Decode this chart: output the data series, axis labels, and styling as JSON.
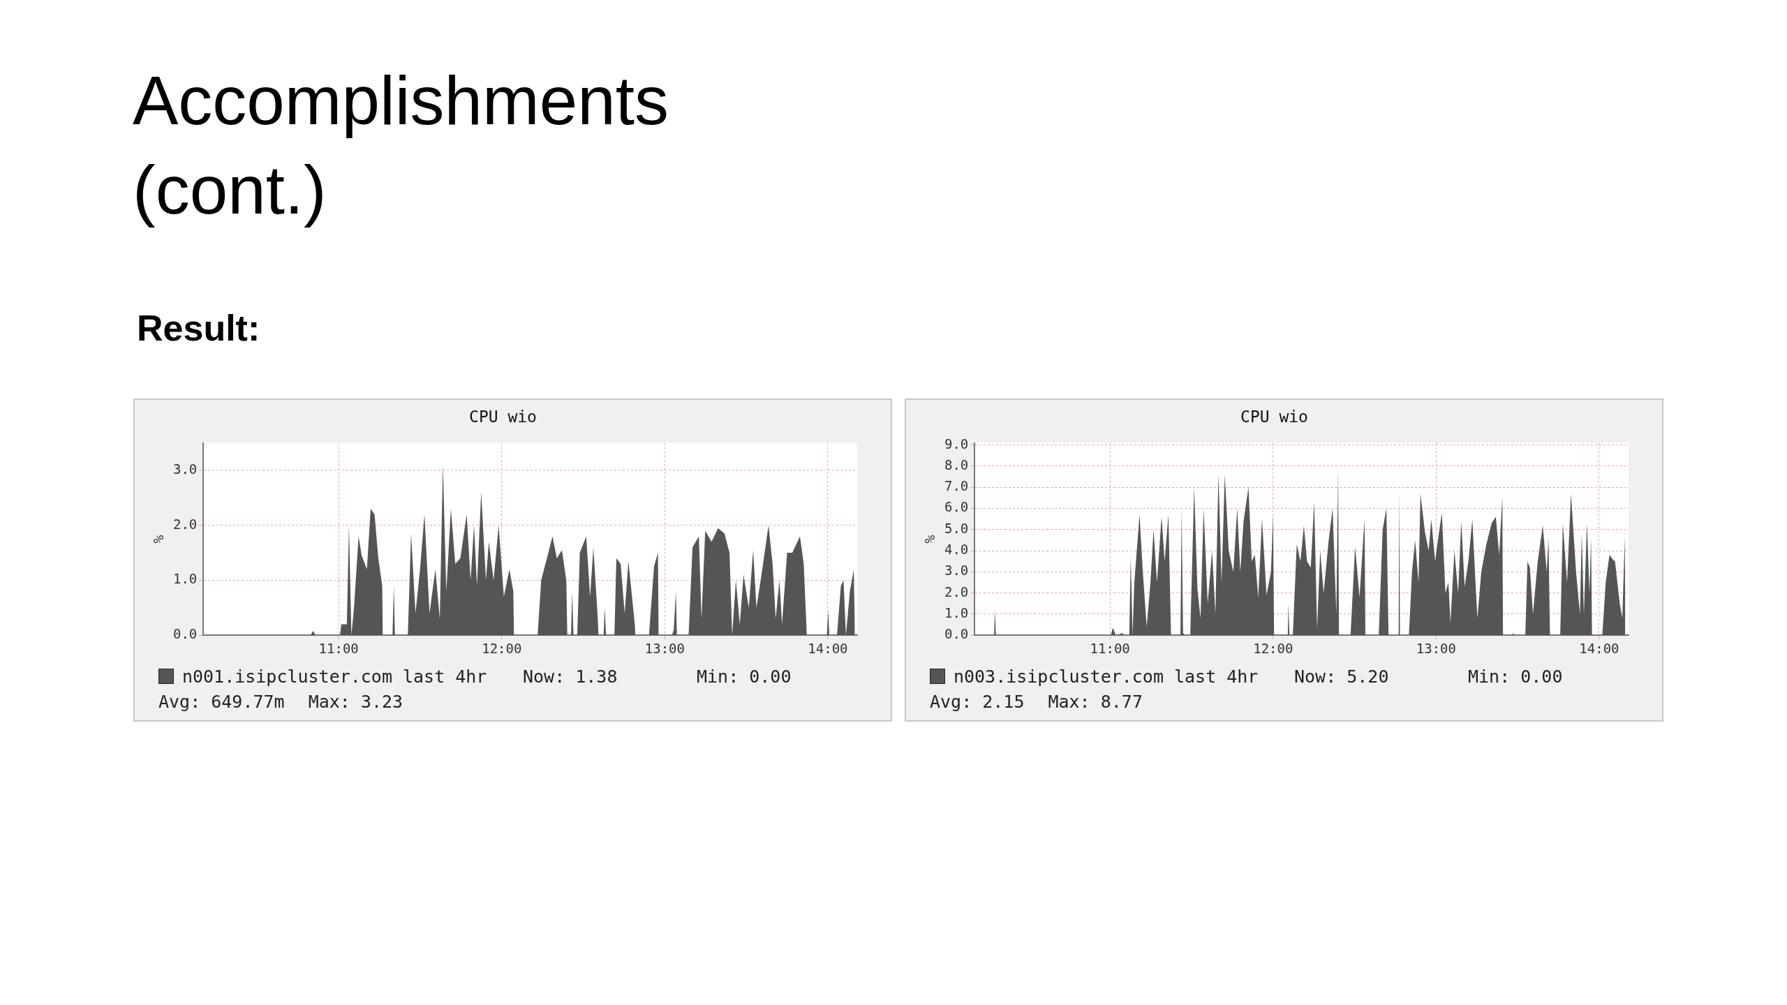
{
  "chart_data": [
    {
      "type": "other",
      "title": "Accomplishments (cont.)",
      "subtitle": "Result:"
    },
    {
      "type": "area",
      "title": "CPU wio",
      "ylabel": "%",
      "xlim": [
        10.17,
        14.18
      ],
      "ylim": [
        0,
        3.5
      ],
      "xticks": [
        {
          "value": 11,
          "label": "11:00"
        },
        {
          "value": 12,
          "label": "12:00"
        },
        {
          "value": 13,
          "label": "13:00"
        },
        {
          "value": 14,
          "label": "14:00"
        }
      ],
      "yticks": [
        {
          "value": 0,
          "label": "0.0"
        },
        {
          "value": 1,
          "label": "1.0"
        },
        {
          "value": 2,
          "label": "2.0"
        },
        {
          "value": 3,
          "label": "3.0"
        }
      ],
      "grid": true,
      "legend": "bottom left",
      "annotations": [
        "Now: 1.38",
        "Min: 0.00",
        "Avg: 649.77m",
        "Max: 3.23"
      ],
      "x": [
        10.17,
        10.827,
        10.843,
        10.859,
        11.008,
        11.016,
        11.05,
        11.063,
        11.078,
        11.094,
        11.122,
        11.141,
        11.173,
        11.196,
        11.22,
        11.243,
        11.267,
        11.27,
        11.33,
        11.338,
        11.345,
        11.424,
        11.444,
        11.471,
        11.499,
        11.526,
        11.557,
        11.593,
        11.62,
        11.639,
        11.66,
        11.688,
        11.715,
        11.746,
        11.785,
        11.809,
        11.83,
        11.848,
        11.874,
        11.903,
        11.921,
        11.95,
        11.981,
        12.013,
        12.047,
        12.071,
        12.075,
        12.22,
        12.242,
        12.259,
        12.286,
        12.311,
        12.338,
        12.369,
        12.396,
        12.402,
        12.425,
        12.432,
        12.44,
        12.463,
        12.479,
        12.518,
        12.542,
        12.562,
        12.589,
        12.593,
        12.625,
        12.631,
        12.64,
        12.691,
        12.703,
        12.729,
        12.754,
        12.777,
        12.816,
        12.82,
        12.903,
        12.934,
        12.958,
        12.962,
        13.044,
        13.055,
        13.068,
        13.074,
        13.146,
        13.17,
        13.209,
        13.225,
        13.248,
        13.287,
        13.327,
        13.366,
        13.397,
        13.413,
        13.436,
        13.46,
        13.483,
        13.515,
        13.542,
        13.562,
        13.593,
        13.636,
        13.661,
        13.68,
        13.703,
        13.719,
        13.75,
        13.782,
        13.829,
        13.852,
        13.871,
        13.994,
        14.002,
        14.009,
        14.056,
        14.08,
        14.096,
        14.111,
        14.135,
        14.159,
        14.166
      ],
      "series": [
        {
          "name": "n001.isipcluster.com last 4hr",
          "color": "#555555",
          "values": [
            0,
            0,
            0.08,
            0,
            0,
            0.2,
            0.2,
            2.0,
            0,
            0.5,
            1.8,
            1.45,
            1.2,
            2.3,
            2.2,
            1.4,
            0.9,
            0,
            0,
            0.9,
            0,
            0,
            1.85,
            0.4,
            1.2,
            2.2,
            0.4,
            1.2,
            0.3,
            3.1,
            0.8,
            2.3,
            1.3,
            1.4,
            2.2,
            1.0,
            2.0,
            0.9,
            2.6,
            1.0,
            1.7,
            1.0,
            2.0,
            0.7,
            1.2,
            0.8,
            0,
            0,
            1.0,
            1.2,
            1.5,
            1.8,
            1.4,
            1.55,
            1.0,
            0,
            0,
            0.8,
            0,
            0,
            1.5,
            1.8,
            0.7,
            1.6,
            0.3,
            0,
            0,
            0.5,
            0,
            0,
            1.4,
            1.3,
            0.4,
            1.35,
            0.2,
            0,
            0,
            1.25,
            1.5,
            0,
            0,
            0.1,
            0.8,
            0,
            0,
            1.6,
            1.8,
            0.3,
            1.9,
            1.7,
            1.95,
            1.85,
            1.5,
            0,
            1.0,
            0.2,
            1.1,
            0.5,
            1.55,
            0.5,
            1.1,
            2.0,
            1.3,
            0.3,
            1.0,
            0.2,
            1.5,
            1.5,
            1.8,
            1.3,
            0,
            0,
            0.45,
            0,
            0,
            0.9,
            1.0,
            0,
            0.8,
            1.2,
            0
          ]
        }
      ]
    },
    {
      "type": "area",
      "title": "CPU wio",
      "ylabel": "%",
      "xlim": [
        10.17,
        14.18
      ],
      "ylim": [
        0,
        9.1
      ],
      "xticks": [
        {
          "value": 11,
          "label": "11:00"
        },
        {
          "value": 12,
          "label": "12:00"
        },
        {
          "value": 13,
          "label": "13:00"
        },
        {
          "value": 14,
          "label": "14:00"
        }
      ],
      "yticks": [
        {
          "value": 0,
          "label": "0.0"
        },
        {
          "value": 1,
          "label": "1.0"
        },
        {
          "value": 2,
          "label": "2.0"
        },
        {
          "value": 3,
          "label": "3.0"
        },
        {
          "value": 4,
          "label": "4.0"
        },
        {
          "value": 5,
          "label": "5.0"
        },
        {
          "value": 6,
          "label": "6.0"
        },
        {
          "value": 7,
          "label": "7.0"
        },
        {
          "value": 8,
          "label": "8.0"
        },
        {
          "value": 9,
          "label": "9.0"
        }
      ],
      "grid": true,
      "legend": "bottom left",
      "annotations": [
        "Now: 5.20",
        "Min: 0.00",
        "Avg: 2.15",
        "Max: 8.77"
      ],
      "x": [
        10.17,
        10.289,
        10.294,
        10.3,
        11.005,
        11.017,
        11.036,
        11.075,
        11.09,
        11.118,
        11.127,
        11.138,
        11.149,
        11.181,
        11.201,
        11.225,
        11.248,
        11.267,
        11.288,
        11.316,
        11.335,
        11.358,
        11.374,
        11.432,
        11.439,
        11.448,
        11.461,
        11.492,
        11.516,
        11.536,
        11.555,
        11.574,
        11.599,
        11.626,
        11.646,
        11.665,
        11.684,
        11.704,
        11.728,
        11.756,
        11.78,
        11.799,
        11.819,
        11.849,
        11.869,
        11.888,
        11.909,
        11.932,
        11.96,
        11.987,
        12.0,
        12.006,
        12.09,
        12.094,
        12.1,
        12.121,
        12.145,
        12.168,
        12.189,
        12.208,
        12.231,
        12.252,
        12.27,
        12.289,
        12.31,
        12.341,
        12.365,
        12.388,
        12.399,
        12.404,
        12.475,
        12.503,
        12.53,
        12.561,
        12.566,
        12.648,
        12.672,
        12.695,
        12.708,
        12.77,
        12.774,
        12.778,
        12.833,
        12.852,
        12.871,
        12.892,
        12.904,
        12.931,
        12.954,
        12.97,
        12.994,
        13.009,
        13.035,
        13.057,
        13.075,
        13.088,
        13.112,
        13.135,
        13.154,
        13.175,
        13.198,
        13.222,
        13.238,
        13.253,
        13.277,
        13.308,
        13.34,
        13.366,
        13.387,
        13.406,
        13.41,
        13.465,
        13.473,
        13.481,
        13.547,
        13.56,
        13.575,
        13.594,
        13.623,
        13.654,
        13.678,
        13.689,
        13.698,
        13.761,
        13.777,
        13.803,
        13.827,
        13.858,
        13.882,
        13.893,
        13.906,
        13.925,
        13.94,
        13.95,
        13.956,
        14.019,
        14.04,
        14.063,
        14.082,
        14.097,
        14.126,
        14.142,
        14.157,
        14.16
      ],
      "series": [
        {
          "name": "n003.isipcluster.com last 4hr",
          "color": "#555555",
          "values": [
            0,
            0,
            1.2,
            0,
            0,
            0.35,
            0,
            0.1,
            0,
            0,
            3.7,
            0,
            2.5,
            5.7,
            3.0,
            0.4,
            2.5,
            5.0,
            2.5,
            5.6,
            3.5,
            5.7,
            0,
            0,
            6.0,
            0.1,
            0,
            0,
            7.0,
            2.2,
            0.8,
            6.0,
            1.5,
            4.0,
            1.0,
            7.6,
            2.5,
            7.6,
            4.0,
            3.0,
            6.0,
            3.0,
            5.4,
            7.0,
            3.5,
            3.8,
            1.8,
            5.5,
            1.9,
            3.0,
            5.7,
            0,
            0,
            1.5,
            0,
            0,
            4.3,
            3.5,
            5.2,
            3.5,
            3.2,
            6.3,
            0.3,
            4.0,
            2.0,
            4.5,
            6.0,
            1.0,
            7.9,
            0,
            0,
            4.2,
            1.8,
            5.5,
            0,
            0,
            5.0,
            6.0,
            0,
            0,
            6.8,
            0,
            0,
            3.0,
            4.5,
            2.5,
            6.7,
            4.9,
            4.0,
            5.5,
            3.5,
            4.4,
            5.8,
            2.0,
            2.5,
            0.6,
            4.0,
            2.0,
            5.4,
            2.3,
            3.5,
            5.5,
            3.0,
            0.8,
            3.0,
            4.3,
            5.3,
            5.6,
            3.8,
            6.6,
            0,
            0,
            0.1,
            0,
            0,
            3.5,
            3.2,
            1.0,
            3.5,
            5.2,
            3.0,
            4.6,
            0,
            0,
            5.3,
            2.5,
            6.7,
            3.0,
            1.0,
            4.8,
            1.0,
            5.3,
            2.0,
            4.6,
            0,
            0,
            2.5,
            3.8,
            3.6,
            3.5,
            1.5,
            0.8,
            4.7,
            0
          ]
        }
      ]
    }
  ]
}
